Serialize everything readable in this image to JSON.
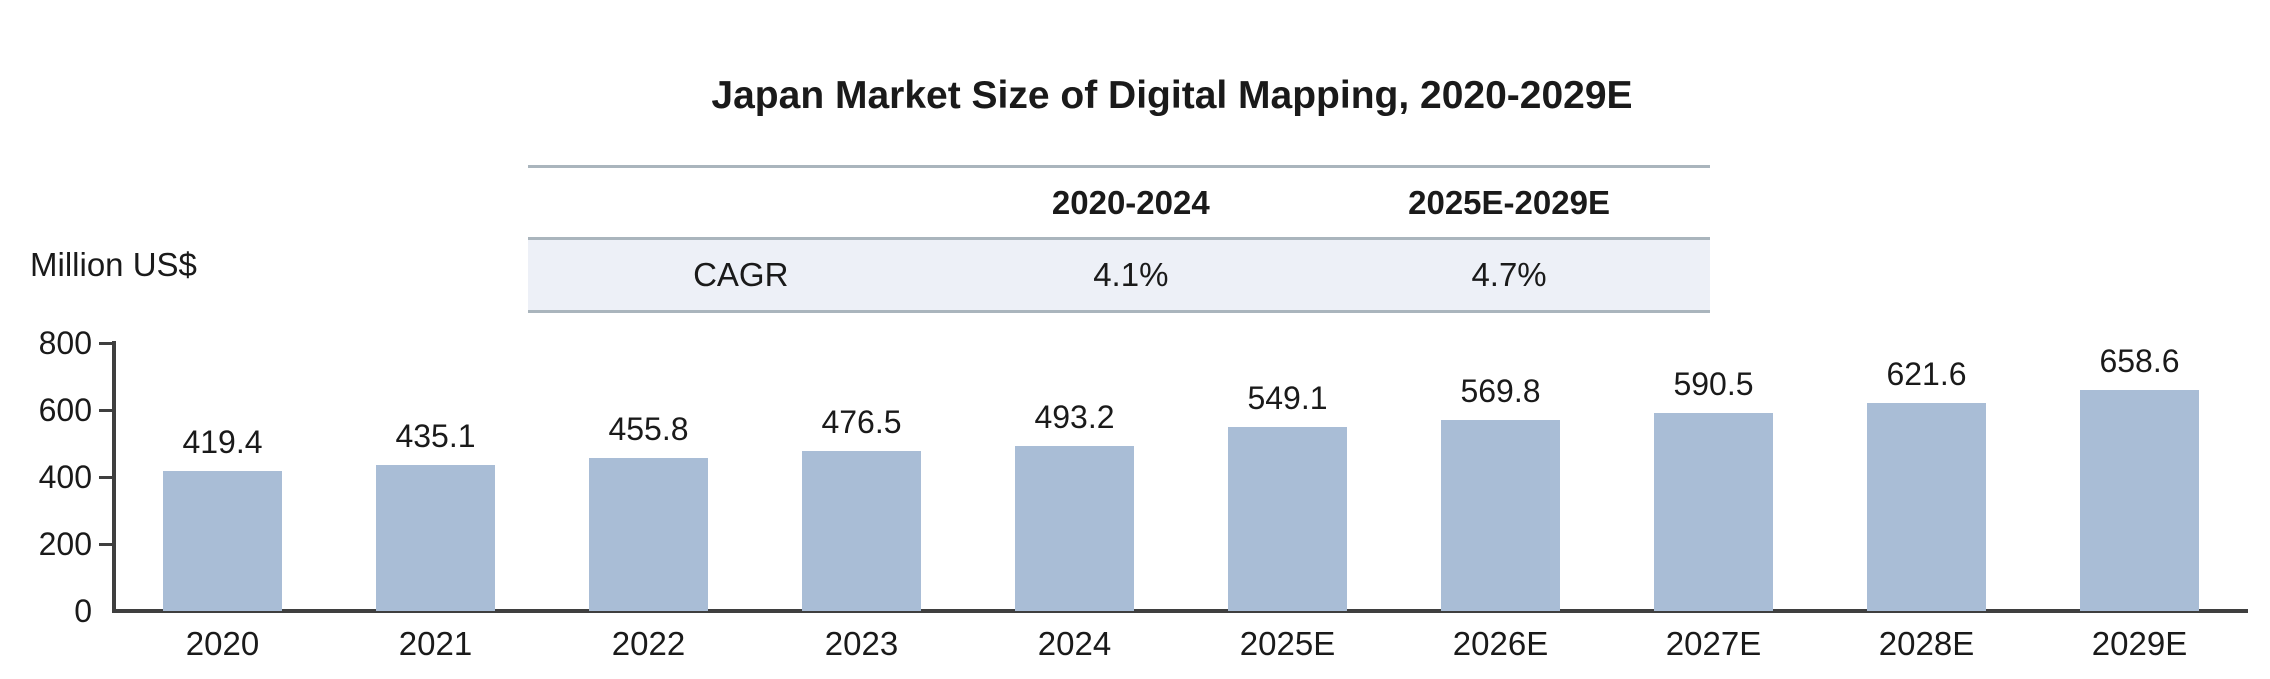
{
  "title": "Japan Market Size of Digital Mapping, 2020-2029E",
  "y_axis_label": "Million US$",
  "cagr_table": {
    "corner": "",
    "period1_header": "2020-2024",
    "period2_header": "2025E-2029E",
    "row_label": "CAGR",
    "period1_value": "4.1%",
    "period2_value": "4.7%"
  },
  "chart_data": {
    "type": "bar",
    "title": "Japan Market Size of Digital Mapping, 2020-2029E",
    "xlabel": "",
    "ylabel": "Million US$",
    "categories": [
      "2020",
      "2021",
      "2022",
      "2023",
      "2024",
      "2025E",
      "2026E",
      "2027E",
      "2028E",
      "2029E"
    ],
    "values": [
      419.4,
      435.1,
      455.8,
      476.5,
      493.2,
      549.1,
      569.8,
      590.5,
      621.6,
      658.6
    ],
    "ylim": [
      0,
      800
    ],
    "yticks": [
      0,
      200,
      400,
      600,
      800
    ],
    "grid": false,
    "legend_position": "none",
    "data_labels": true,
    "annotations": {
      "cagr_2020_2024": "4.1%",
      "cagr_2025E_2029E": "4.7%"
    }
  },
  "colors": {
    "bar_fill": "#a9bdd6",
    "table_row_bg": "#edf0f7",
    "table_line": "#aab5bd",
    "axis_line": "#3f3f3f",
    "text": "#1a1a1a",
    "background": "#ffffff"
  }
}
